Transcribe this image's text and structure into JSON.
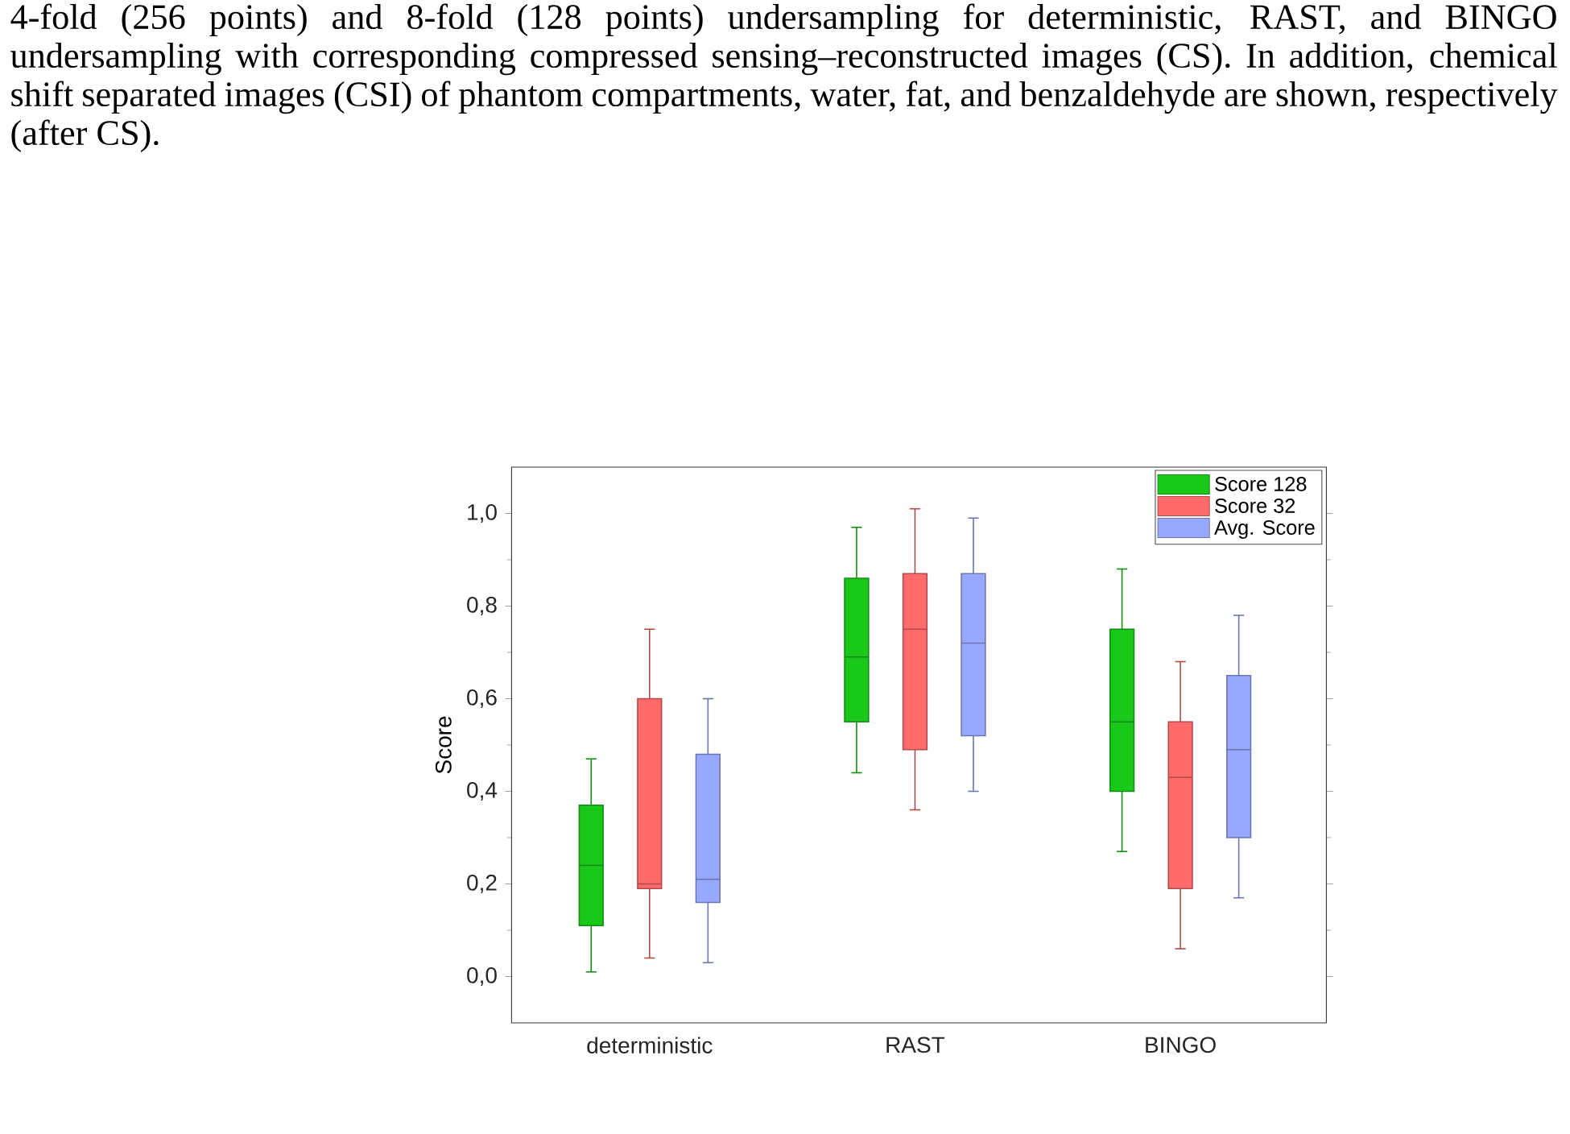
{
  "chart_data": {
    "type": "box",
    "annotations": [
      "4-fold (256 points) and 8-fold (128 points) undersampling for deterministic, RAST, and BINGO undersampling with corresponding compressed sensing–reconstructed images (CS). In addition, chemical shift separated images (CSI) of phantom compartments, water, fat, and benzaldehyde are shown, respectively (after CS)."
    ],
    "ylabel": "Score",
    "categories": [
      "deterministic",
      "RAST",
      "BINGO"
    ],
    "series": [
      {
        "name": "Score 128",
        "color": "#1ac81a",
        "boxes": [
          {
            "low": 0.01,
            "q1": 0.11,
            "median": 0.24,
            "q3": 0.37,
            "high": 0.47
          },
          {
            "low": 0.44,
            "q1": 0.55,
            "median": 0.69,
            "q3": 0.86,
            "high": 0.97
          },
          {
            "low": 0.27,
            "q1": 0.4,
            "median": 0.55,
            "q3": 0.75,
            "high": 0.88
          }
        ]
      },
      {
        "name": "Score 32",
        "color": "#ff6b6b",
        "boxes": [
          {
            "low": 0.04,
            "q1": 0.19,
            "median": 0.2,
            "q3": 0.6,
            "high": 0.75
          },
          {
            "low": 0.36,
            "q1": 0.49,
            "median": 0.75,
            "q3": 0.87,
            "high": 1.01
          },
          {
            "low": 0.06,
            "q1": 0.19,
            "median": 0.43,
            "q3": 0.55,
            "high": 0.68
          }
        ]
      },
      {
        "name": "Avg. Score",
        "color": "#99a8ff",
        "boxes": [
          {
            "low": 0.03,
            "q1": 0.16,
            "median": 0.21,
            "q3": 0.48,
            "high": 0.6
          },
          {
            "low": 0.4,
            "q1": 0.52,
            "median": 0.72,
            "q3": 0.87,
            "high": 0.99
          },
          {
            "low": 0.17,
            "q1": 0.3,
            "median": 0.49,
            "q3": 0.65,
            "high": 0.78
          }
        ]
      }
    ],
    "ylim": [
      -0.1,
      1.1
    ],
    "yticks": [
      {
        "value": 0,
        "label": "0,0"
      },
      {
        "value": 0.1,
        "label": null
      },
      {
        "value": 0.2,
        "label": "0,2"
      },
      {
        "value": 0.3,
        "label": null
      },
      {
        "value": 0.4,
        "label": "0,4"
      },
      {
        "value": 0.5,
        "label": null
      },
      {
        "value": 0.6,
        "label": "0,6"
      },
      {
        "value": 0.7,
        "label": null
      },
      {
        "value": 0.8,
        "label": "0,8"
      },
      {
        "value": 0.9,
        "label": null
      },
      {
        "value": 1.0,
        "label": "1,0"
      }
    ],
    "legend": "top right"
  }
}
